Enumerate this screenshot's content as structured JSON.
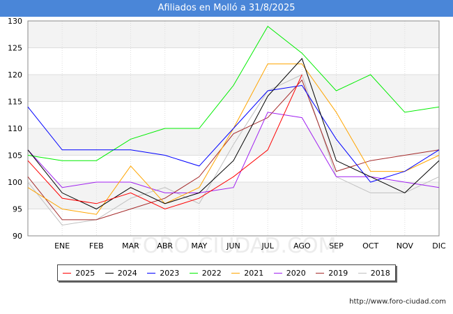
{
  "header": {
    "title": "Afiliados en Molló a 31/8/2025"
  },
  "footer": {
    "url": "http://www.foro-ciudad.com"
  },
  "watermark": "FORO-CIUDAD.COM",
  "chart_data": {
    "type": "line",
    "title": "Afiliados en Molló a 31/8/2025",
    "xlabel": "",
    "ylabel": "",
    "categories": [
      "",
      "ENE",
      "FEB",
      "MAR",
      "ABR",
      "MAY",
      "JUN",
      "JUL",
      "AGO",
      "SEP",
      "OCT",
      "NOV",
      "DIC"
    ],
    "ylim": [
      90,
      130
    ],
    "yticks": [
      90,
      95,
      100,
      105,
      110,
      115,
      120,
      125,
      130
    ],
    "grid": true,
    "legend_position": "bottom",
    "series": [
      {
        "name": "2025",
        "color": "#ff0000",
        "values": [
          104,
          97,
          96,
          98,
          95,
          97,
          101,
          106,
          120,
          null,
          null,
          null,
          null
        ]
      },
      {
        "name": "2024",
        "color": "#000000",
        "values": [
          106,
          98,
          95,
          99,
          96,
          98,
          104,
          116,
          123,
          104,
          101,
          98,
          104
        ]
      },
      {
        "name": "2023",
        "color": "#0000ff",
        "values": [
          114,
          106,
          106,
          106,
          105,
          103,
          110,
          117,
          118,
          108,
          100,
          102,
          106
        ]
      },
      {
        "name": "2022",
        "color": "#00ee00",
        "values": [
          105,
          104,
          104,
          108,
          110,
          110,
          118,
          129,
          124,
          117,
          120,
          113,
          114
        ]
      },
      {
        "name": "2021",
        "color": "#ffa500",
        "values": [
          99,
          95,
          94,
          103,
          96,
          99,
          110,
          122,
          122,
          113,
          102,
          102,
          105
        ]
      },
      {
        "name": "2020",
        "color": "#a020f0",
        "values": [
          106,
          99,
          100,
          100,
          98,
          98,
          99,
          113,
          112,
          101,
          101,
          100,
          99
        ]
      },
      {
        "name": "2019",
        "color": "#a52a2a",
        "values": [
          101,
          93,
          93,
          95,
          97,
          101,
          109,
          112,
          119,
          102,
          104,
          105,
          106
        ]
      },
      {
        "name": "2018",
        "color": "#c0c0c0",
        "values": [
          100,
          92,
          93,
          97,
          99,
          96,
          107,
          117,
          120,
          101,
          98,
          98,
          101
        ]
      }
    ]
  }
}
